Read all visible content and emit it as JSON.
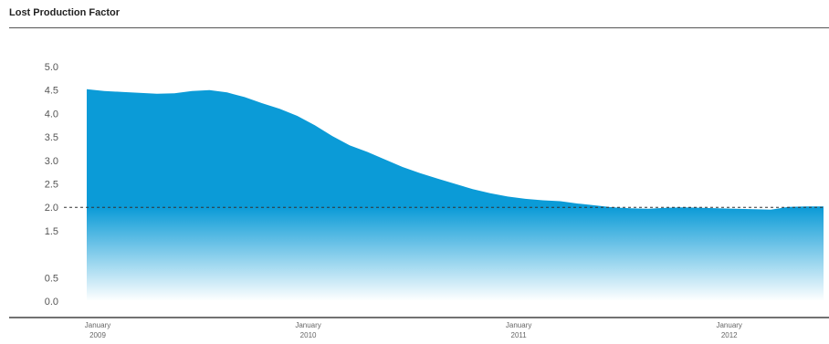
{
  "chart_data": {
    "type": "area",
    "title": "Lost Production Factor",
    "xlabel": "",
    "ylabel": "",
    "ylim": [
      0,
      5
    ],
    "y_ticks": [
      "0.0",
      "0.5",
      "1.5",
      "2.0",
      "2.5",
      "3.0",
      "3.5",
      "4.0",
      "4.5",
      "5.0"
    ],
    "x_ticks": [
      {
        "month": "January",
        "year": "2009"
      },
      {
        "month": "January",
        "year": "2010"
      },
      {
        "month": "January",
        "year": "2011"
      },
      {
        "month": "January",
        "year": "2012"
      }
    ],
    "reference_line": 2.0,
    "grid": false,
    "fill_color": "#0b9bd7",
    "fill_fade_color": "#ffffff",
    "reference_line_color": "#333333",
    "x": [
      "2009-01",
      "2009-02",
      "2009-03",
      "2009-04",
      "2009-05",
      "2009-06",
      "2009-07",
      "2009-08",
      "2009-09",
      "2009-10",
      "2009-11",
      "2009-12",
      "2010-01",
      "2010-02",
      "2010-03",
      "2010-04",
      "2010-05",
      "2010-06",
      "2010-07",
      "2010-08",
      "2010-09",
      "2010-10",
      "2010-11",
      "2010-12",
      "2011-01",
      "2011-02",
      "2011-03",
      "2011-04",
      "2011-05",
      "2011-06",
      "2011-07",
      "2011-08",
      "2011-09",
      "2011-10",
      "2011-11",
      "2011-12",
      "2012-01",
      "2012-02",
      "2012-03",
      "2012-04",
      "2012-05",
      "2012-06",
      "2012-07"
    ],
    "series": [
      {
        "values": [
          4.52,
          4.48,
          4.46,
          4.44,
          4.42,
          4.43,
          4.48,
          4.5,
          4.45,
          4.35,
          4.22,
          4.1,
          3.95,
          3.75,
          3.52,
          3.32,
          3.18,
          3.02,
          2.86,
          2.73,
          2.61,
          2.5,
          2.39,
          2.3,
          2.23,
          2.18,
          2.15,
          2.13,
          2.08,
          2.04,
          2.0,
          1.98,
          1.97,
          1.99,
          2.0,
          1.99,
          1.98,
          1.97,
          1.96,
          1.95,
          2.01,
          2.02,
          2.02
        ]
      }
    ]
  }
}
